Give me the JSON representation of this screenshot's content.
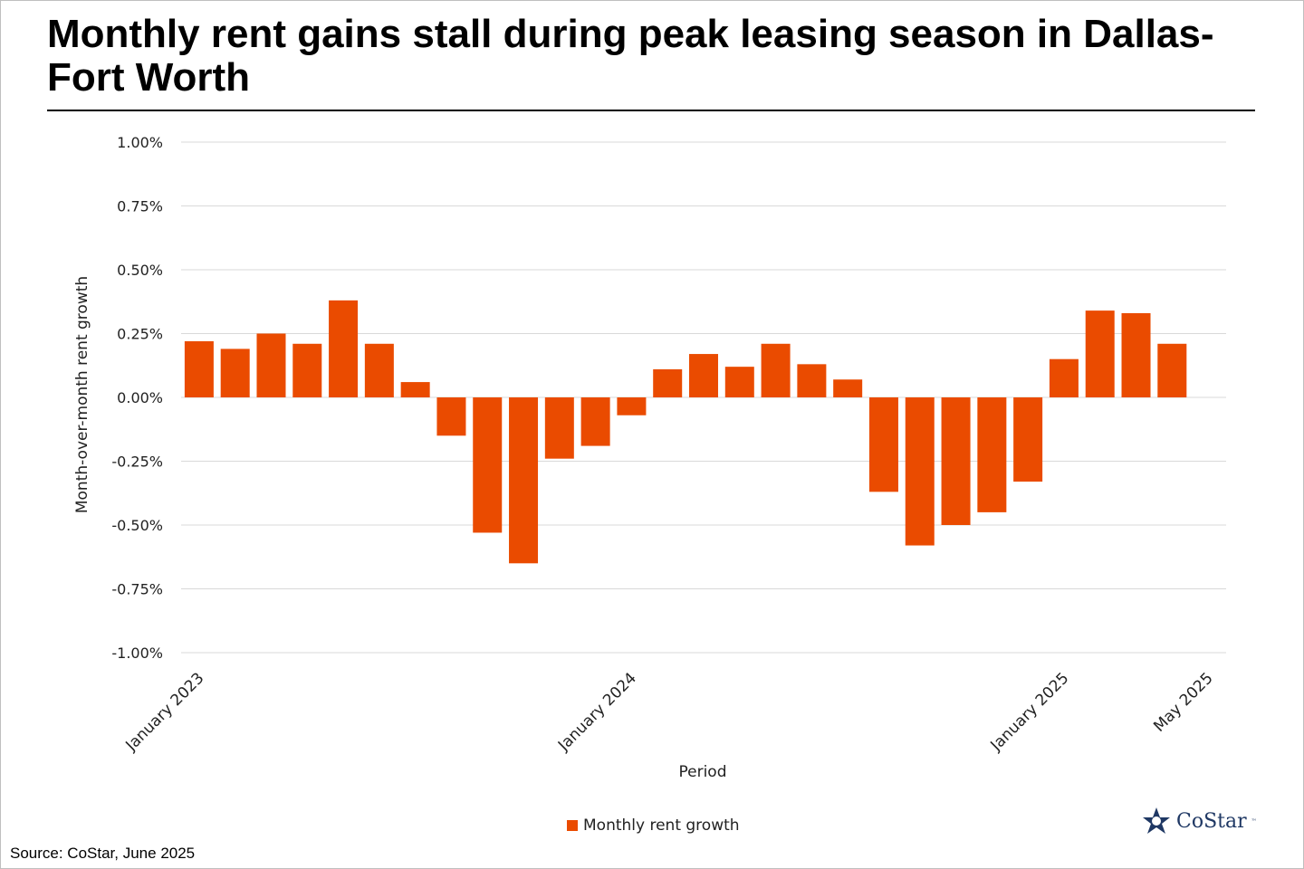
{
  "title": "Monthly rent gains stall during peak leasing season in Dallas-Fort Worth",
  "source": "Source: CoStar, June 2025",
  "logo": {
    "name": "CoStar",
    "mark": "™"
  },
  "colors": {
    "bar": "#ea4b00",
    "grid": "#d9d9d9",
    "text": "#222222"
  },
  "chart_data": {
    "type": "bar",
    "title": "Monthly rent gains stall during peak leasing season in Dallas-Fort Worth",
    "xlabel": "Period",
    "ylabel": "Month-over-month rent growth",
    "ylim": [
      -1.0,
      1.0
    ],
    "yticks": [
      1.0,
      0.75,
      0.5,
      0.25,
      0.0,
      -0.25,
      -0.5,
      -0.75,
      -1.0
    ],
    "ytick_labels": [
      "1.00%",
      "0.75%",
      "0.50%",
      "0.25%",
      "0.00%",
      "-0.25%",
      "-0.50%",
      "-0.75%",
      "-1.00%"
    ],
    "grid": true,
    "legend_position": "bottom",
    "categories": [
      "Jan 2023",
      "Feb 2023",
      "Mar 2023",
      "Apr 2023",
      "May 2023",
      "Jun 2023",
      "Jul 2023",
      "Aug 2023",
      "Sep 2023",
      "Oct 2023",
      "Nov 2023",
      "Dec 2023",
      "Jan 2024",
      "Feb 2024",
      "Mar 2024",
      "Apr 2024",
      "May 2024",
      "Jun 2024",
      "Jul 2024",
      "Aug 2024",
      "Sep 2024",
      "Oct 2024",
      "Nov 2024",
      "Dec 2024",
      "Jan 2025",
      "Feb 2025",
      "Mar 2025",
      "Apr 2025",
      "May 2025"
    ],
    "xtick_labels": [
      {
        "index": 0,
        "label": "January 2023"
      },
      {
        "index": 12,
        "label": "January 2024"
      },
      {
        "index": 24,
        "label": "January 2025"
      },
      {
        "index": 28,
        "label": "May 2025"
      }
    ],
    "series": [
      {
        "name": "Monthly rent growth",
        "values": [
          0.22,
          0.19,
          0.25,
          0.21,
          0.38,
          0.21,
          0.06,
          -0.15,
          -0.53,
          -0.65,
          -0.24,
          -0.19,
          -0.07,
          0.11,
          0.17,
          0.12,
          0.21,
          0.13,
          0.07,
          -0.37,
          -0.58,
          -0.5,
          -0.45,
          -0.33,
          0.15,
          0.34,
          0.33,
          0.21,
          0.0
        ]
      }
    ]
  }
}
